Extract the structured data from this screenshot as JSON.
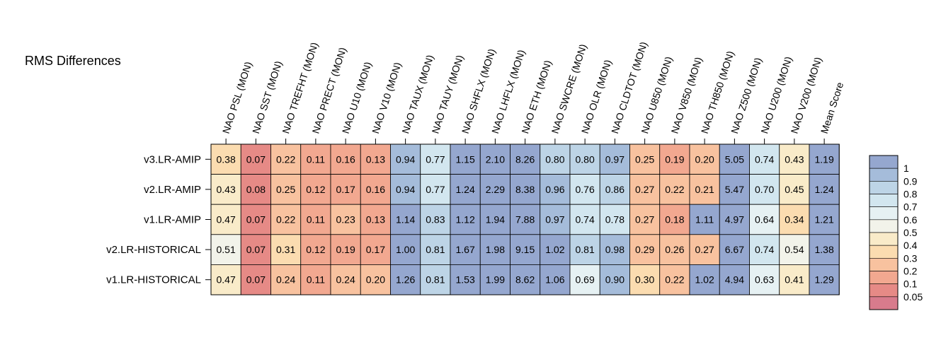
{
  "chart_data": {
    "type": "heatmap",
    "title": "RMS Differences",
    "columns": [
      "NAO PSL (MON)",
      "NAO SST (MON)",
      "NAO TREFHT (MON)",
      "NAO PRECT (MON)",
      "NAO U10 (MON)",
      "NAO V10 (MON)",
      "NAO TAUX (MON)",
      "NAO TAUY (MON)",
      "NAO SHFLX (MON)",
      "NAO LHFLX (MON)",
      "NAO ETH (MON)",
      "NAO SWCRE (MON)",
      "NAO OLR (MON)",
      "NAO CLDTOT (MON)",
      "NAO U850 (MON)",
      "NAO V850 (MON)",
      "NAO TH850 (MON)",
      "NAO Z500 (MON)",
      "NAO U200 (MON)",
      "NAO V200 (MON)",
      "Mean Score"
    ],
    "rows": [
      "v3.LR-AMIP",
      "v2.LR-AMIP",
      "v1.LR-AMIP",
      "v2.LR-HISTORICAL",
      "v1.LR-HISTORICAL"
    ],
    "values": [
      [
        0.38,
        0.07,
        0.22,
        0.11,
        0.16,
        0.13,
        0.94,
        0.77,
        1.15,
        2.1,
        8.26,
        0.8,
        0.8,
        0.97,
        0.25,
        0.19,
        0.2,
        5.05,
        0.74,
        0.43,
        1.19
      ],
      [
        0.43,
        0.08,
        0.25,
        0.12,
        0.17,
        0.16,
        0.94,
        0.77,
        1.24,
        2.29,
        8.38,
        0.96,
        0.76,
        0.86,
        0.27,
        0.22,
        0.21,
        5.47,
        0.7,
        0.45,
        1.24
      ],
      [
        0.47,
        0.07,
        0.22,
        0.11,
        0.23,
        0.13,
        1.14,
        0.83,
        1.12,
        1.94,
        7.88,
        0.97,
        0.74,
        0.78,
        0.27,
        0.18,
        1.11,
        4.97,
        0.64,
        0.34,
        1.21
      ],
      [
        0.51,
        0.07,
        0.31,
        0.12,
        0.19,
        0.17,
        1.0,
        0.81,
        1.67,
        1.98,
        9.15,
        1.02,
        0.81,
        0.98,
        0.29,
        0.26,
        0.27,
        6.67,
        0.74,
        0.54,
        1.38
      ],
      [
        0.47,
        0.07,
        0.24,
        0.11,
        0.24,
        0.2,
        1.26,
        0.81,
        1.53,
        1.99,
        8.62,
        1.06,
        0.69,
        0.9,
        0.3,
        0.22,
        1.02,
        4.94,
        0.63,
        0.41,
        1.29
      ]
    ],
    "value_labels": [
      [
        "0.38",
        "0.07",
        "0.22",
        "0.11",
        "0.16",
        "0.13",
        "0.94",
        "0.77",
        "1.15",
        "2.10",
        "8.26",
        "0.80",
        "0.80",
        "0.97",
        "0.25",
        "0.19",
        "0.20",
        "5.05",
        "0.74",
        "0.43",
        "1.19"
      ],
      [
        "0.43",
        "0.08",
        "0.25",
        "0.12",
        "0.17",
        "0.16",
        "0.94",
        "0.77",
        "1.24",
        "2.29",
        "8.38",
        "0.96",
        "0.76",
        "0.86",
        "0.27",
        "0.22",
        "0.21",
        "5.47",
        "0.70",
        "0.45",
        "1.24"
      ],
      [
        "0.47",
        "0.07",
        "0.22",
        "0.11",
        "0.23",
        "0.13",
        "1.14",
        "0.83",
        "1.12",
        "1.94",
        "7.88",
        "0.97",
        "0.74",
        "0.78",
        "0.27",
        "0.18",
        "1.11",
        "4.97",
        "0.64",
        "0.34",
        "1.21"
      ],
      [
        "0.51",
        "0.07",
        "0.31",
        "0.12",
        "0.19",
        "0.17",
        "1.00",
        "0.81",
        "1.67",
        "1.98",
        "9.15",
        "1.02",
        "0.81",
        "0.98",
        "0.29",
        "0.26",
        "0.27",
        "6.67",
        "0.74",
        "0.54",
        "1.38"
      ],
      [
        "0.47",
        "0.07",
        "0.24",
        "0.11",
        "0.24",
        "0.20",
        "1.26",
        "0.81",
        "1.53",
        "1.99",
        "8.62",
        "1.06",
        "0.69",
        "0.90",
        "0.30",
        "0.22",
        "1.02",
        "4.94",
        "0.63",
        "0.41",
        "1.29"
      ]
    ],
    "colorbar": {
      "labels": [
        "1",
        "0.9",
        "0.8",
        "0.7",
        "0.6",
        "0.5",
        "0.4",
        "0.3",
        "0.2",
        "0.1",
        "0.05"
      ],
      "bins": [
        {
          "min": 1.0,
          "color": "#95a7cf"
        },
        {
          "min": 0.9,
          "color": "#a5bcda"
        },
        {
          "min": 0.8,
          "color": "#bdd4e6"
        },
        {
          "min": 0.7,
          "color": "#d2e6ef"
        },
        {
          "min": 0.6,
          "color": "#e6f1f3"
        },
        {
          "min": 0.5,
          "color": "#f2f3ea"
        },
        {
          "min": 0.4,
          "color": "#f9ebc9"
        },
        {
          "min": 0.3,
          "color": "#fbdcb0"
        },
        {
          "min": 0.2,
          "color": "#f8c29f"
        },
        {
          "min": 0.1,
          "color": "#f2a890"
        },
        {
          "min": 0.05,
          "color": "#e68a86"
        },
        {
          "min": 0.0,
          "color": "#d87b8c"
        }
      ]
    }
  }
}
